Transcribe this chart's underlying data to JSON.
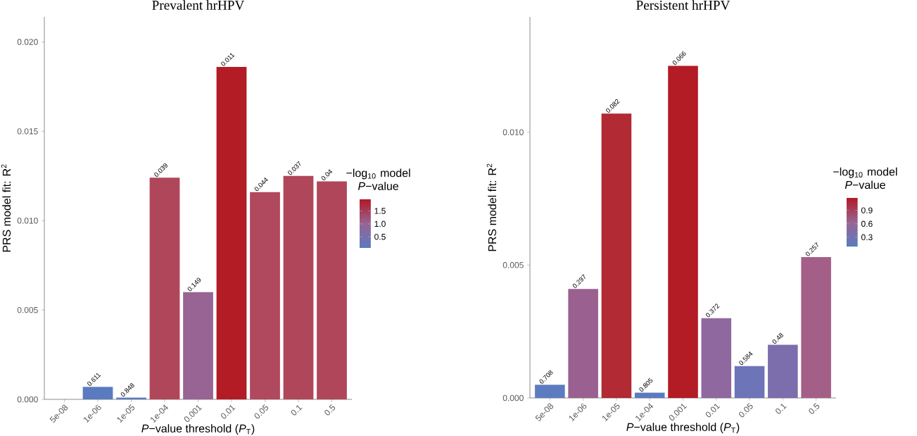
{
  "chart_data": [
    {
      "type": "bar",
      "title": "Prevalent hrHPV",
      "xlabel": "*P*−value threshold (*P*$_{T}$)",
      "ylabel": "PRS model fit:  R$^{2}$",
      "clabel": "−log$_{10}$ model *P*−value",
      "categories": [
        "5e-08",
        "1e-06",
        "1e-05",
        "1e-04",
        "0.001",
        "0.01",
        "0.05",
        "0.1",
        "0.5"
      ],
      "values": [
        0,
        0.0007,
        0.0001,
        0.0124,
        0.006,
        0.0186,
        0.0116,
        0.0125,
        0.0122
      ],
      "colors": [
        "#5b7bc0",
        "#5b7bc0",
        "#5b7bc0",
        "#b0465a",
        "#986493",
        "#b31b25",
        "#b0485e",
        "#b0465a",
        "#b0465a"
      ],
      "annotations": [
        {
          "text": "0.611",
          "x": "1e-06",
          "y": 0.0007
        },
        {
          "text": "0.848",
          "x": "1e-05",
          "y": 0.0001
        },
        {
          "text": "0.039",
          "x": "1e-04",
          "y": 0.0124
        },
        {
          "text": "0.149",
          "x": "0.001",
          "y": 0.006
        },
        {
          "text": "0.011",
          "x": "0.01",
          "y": 0.0186
        },
        {
          "text": "0.044",
          "x": "0.05",
          "y": 0.0116
        },
        {
          "text": "0.037",
          "x": "0.1",
          "y": 0.0125
        },
        {
          "text": "0.04",
          "x": "0.5",
          "y": 0.0122
        }
      ],
      "ylim": [
        0,
        0.0214
      ],
      "yticks": [
        {
          "value": 0,
          "label": "0.000"
        },
        {
          "value": 0.005,
          "label": "0.005"
        },
        {
          "value": 0.01,
          "label": "0.010"
        },
        {
          "value": 0.015,
          "label": "0.015"
        },
        {
          "value": 0.02,
          "label": "0.020"
        }
      ],
      "clim": [
        0.07,
        1.96
      ],
      "cticks": [
        {
          "value": 0.5,
          "label": "0.5"
        },
        {
          "value": 1.0,
          "label": "1.0"
        },
        {
          "value": 1.5,
          "label": "1.5"
        }
      ]
    },
    {
      "type": "bar",
      "title": "Persistent hrHPV",
      "xlabel": "*P*−value threshold (*P*$_{T}$)",
      "ylabel": "PRS model fit:  R$^{2}$",
      "clabel": "−log$_{10}$ model *P*−value",
      "categories": [
        "5e-08",
        "1e-06",
        "1e-05",
        "1e-04",
        "0.001",
        "0.01",
        "0.05",
        "0.1",
        "0.5"
      ],
      "values": [
        0.0005,
        0.0041,
        0.0107,
        0.0002,
        0.0125,
        0.003,
        0.0012,
        0.002,
        0.0053
      ],
      "colors": [
        "#5d7cc0",
        "#9a608f",
        "#b22a33",
        "#5a7bc0",
        "#b31b25",
        "#9068a0",
        "#6d74b8",
        "#7c6eac",
        "#a45f88"
      ],
      "annotations": [
        {
          "text": "0.708",
          "x": "5e-08",
          "y": 0.0005
        },
        {
          "text": "0.297",
          "x": "1e-06",
          "y": 0.0041
        },
        {
          "text": "0.082",
          "x": "1e-05",
          "y": 0.0107
        },
        {
          "text": "0.805",
          "x": "1e-04",
          "y": 0.0002
        },
        {
          "text": "0.066",
          "x": "0.001",
          "y": 0.0125
        },
        {
          "text": "0.372",
          "x": "0.01",
          "y": 0.003
        },
        {
          "text": "0.584",
          "x": "0.05",
          "y": 0.0012
        },
        {
          "text": "0.48",
          "x": "0.1",
          "y": 0.002
        },
        {
          "text": "0.257",
          "x": "0.5",
          "y": 0.0053
        }
      ],
      "ylim": [
        0,
        0.01434
      ],
      "yticks": [
        {
          "value": 0,
          "label": "0.000"
        },
        {
          "value": 0.005,
          "label": "0.005"
        },
        {
          "value": 0.01,
          "label": "0.010"
        }
      ],
      "clim": [
        0.09,
        1.18
      ],
      "cticks": [
        {
          "value": 0.3,
          "label": "0.3"
        },
        {
          "value": 0.6,
          "label": "0.6"
        },
        {
          "value": 0.9,
          "label": "0.9"
        }
      ]
    }
  ]
}
